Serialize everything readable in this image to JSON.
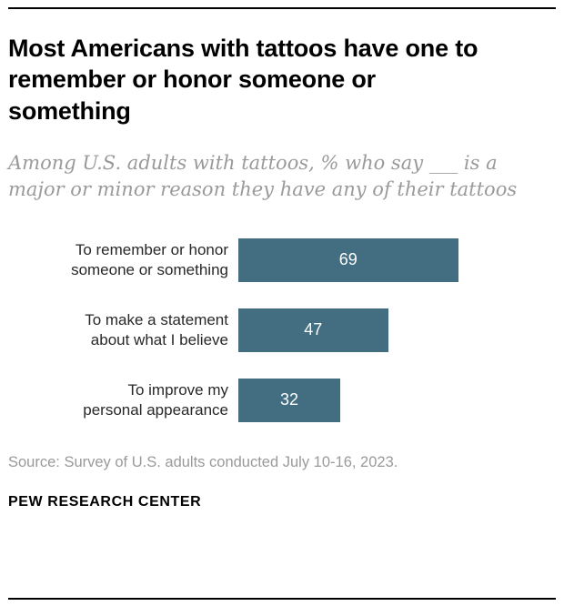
{
  "chart_data": {
    "type": "bar",
    "orientation": "horizontal",
    "title": "Most Americans with tattoos have one to remember or honor someone or something",
    "subtitle": "Among U.S. adults with tattoos, % who say ___ is a major or minor reason they have any of their tattoos",
    "categories": [
      "To remember or honor\nsomeone or something",
      "To make a statement\nabout what I believe",
      "To improve my\npersonal appearance"
    ],
    "values": [
      69,
      47,
      32
    ],
    "xlim": [
      0,
      100
    ],
    "grid": false,
    "legend": "none",
    "bar_color": "#436e82",
    "value_label_color": "#ffffff"
  },
  "footer": {
    "source": "Source: Survey of U.S. adults conducted July 10-16, 2023.",
    "brand": "PEW RESEARCH CENTER"
  }
}
